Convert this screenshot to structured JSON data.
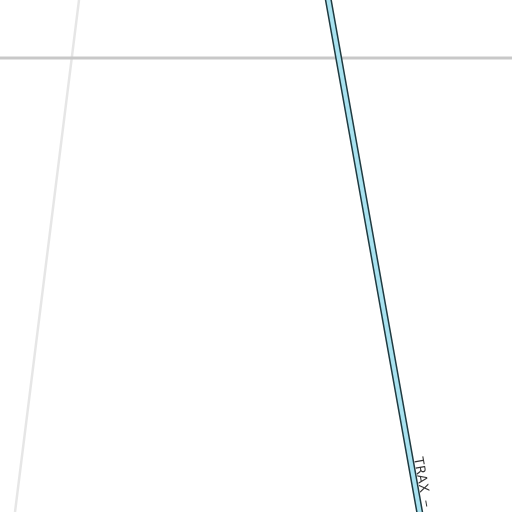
{
  "map": {
    "background_color": "#ffffff",
    "road_color_major": "#c8c8c8",
    "road_color_minor": "#e6e6e6",
    "transit_line": {
      "label": "TRAX",
      "fill_color": "#a8e2f0",
      "casing_color": "#1f3a40"
    }
  }
}
